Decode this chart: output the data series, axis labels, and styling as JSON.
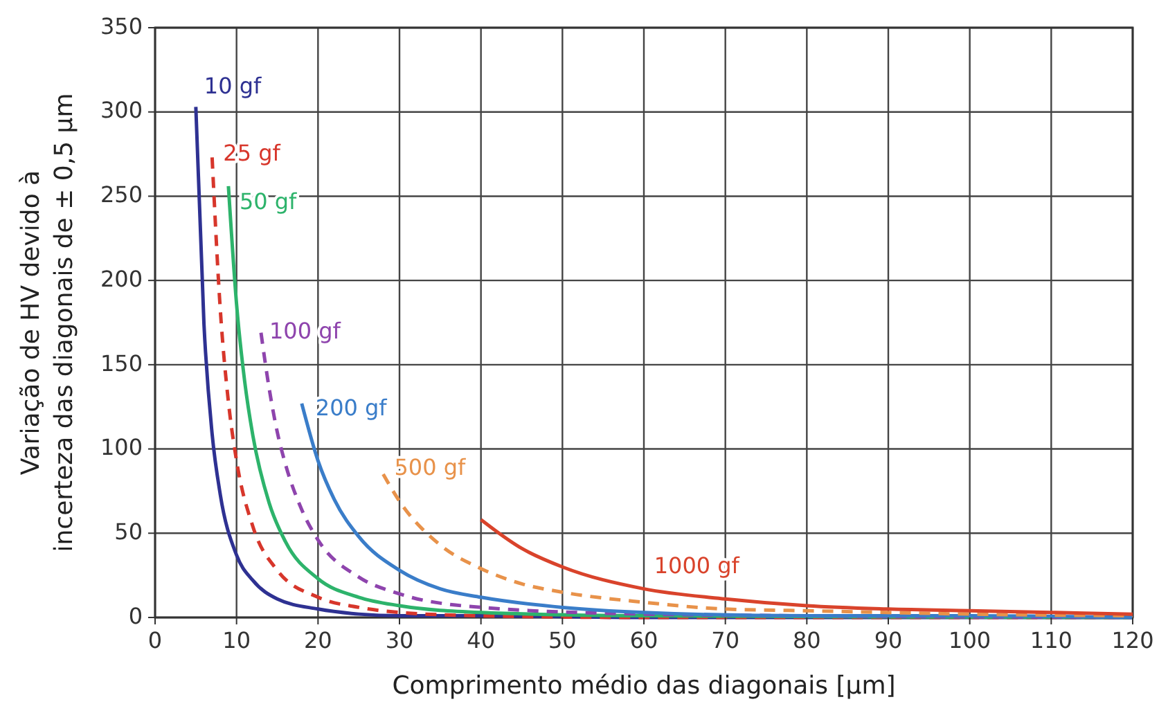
{
  "chart_data": {
    "type": "line",
    "xlabel": "Comprimento médio das diagonais [µm]",
    "ylabel": "Variação de HV devido à\nincerteza das diagonais de ± 0,5 µm",
    "xlim": [
      0,
      120
    ],
    "ylim": [
      0,
      350
    ],
    "xticks": [
      0,
      10,
      20,
      30,
      40,
      50,
      60,
      70,
      80,
      90,
      100,
      110,
      120
    ],
    "yticks": [
      0,
      50,
      100,
      150,
      200,
      250,
      300,
      350
    ],
    "grid": true,
    "marker": "none",
    "series": [
      {
        "name": "10 gf",
        "color": "#2e3192",
        "line_style": "solid",
        "x": [
          5,
          6,
          7,
          8,
          10,
          12,
          15,
          20,
          25,
          30,
          40,
          60,
          120
        ],
        "values": [
          303,
          174,
          109,
          73,
          37,
          22,
          11,
          5,
          2,
          1,
          1,
          0,
          0
        ]
      },
      {
        "name": "25 gf",
        "color": "#d7362b",
        "line_style": "dashed",
        "x": [
          7,
          8,
          9,
          10,
          12,
          15,
          20,
          25,
          30,
          40,
          60,
          120
        ],
        "values": [
          273,
          183,
          128,
          93,
          54,
          28,
          12,
          6,
          3,
          1,
          0,
          0
        ]
      },
      {
        "name": "50 gf",
        "color": "#2db36b",
        "line_style": "solid",
        "x": [
          9,
          10,
          11,
          12,
          14,
          16,
          20,
          25,
          30,
          40,
          60,
          120
        ],
        "values": [
          256,
          186,
          140,
          108,
          68,
          45,
          23,
          12,
          7,
          3,
          1,
          0
        ]
      },
      {
        "name": "100 gf",
        "color": "#8e44ad",
        "line_style": "dashed",
        "x": [
          13,
          14,
          15,
          16,
          18,
          20,
          25,
          30,
          40,
          60,
          80,
          120
        ],
        "values": [
          169,
          136,
          110,
          91,
          64,
          46,
          24,
          14,
          6,
          2,
          1,
          0
        ]
      },
      {
        "name": "200 gf",
        "color": "#3a7dc9",
        "line_style": "solid",
        "x": [
          18,
          20,
          22,
          25,
          30,
          35,
          40,
          50,
          60,
          80,
          100,
          120
        ],
        "values": [
          127,
          93,
          70,
          48,
          28,
          17,
          12,
          6,
          3,
          1,
          1,
          0
        ]
      },
      {
        "name": "500 gf",
        "color": "#e8924a",
        "line_style": "dashed",
        "x": [
          28,
          30,
          35,
          40,
          45,
          50,
          60,
          70,
          80,
          100,
          120
        ],
        "values": [
          85,
          69,
          43,
          29,
          20,
          15,
          9,
          5,
          4,
          2,
          1
        ]
      },
      {
        "name": "1000 gf",
        "color": "#d9432b",
        "line_style": "solid",
        "x": [
          40,
          45,
          50,
          60,
          70,
          80,
          90,
          100,
          110,
          120
        ],
        "values": [
          58,
          41,
          30,
          17,
          11,
          7,
          5,
          4,
          3,
          2
        ]
      }
    ]
  }
}
